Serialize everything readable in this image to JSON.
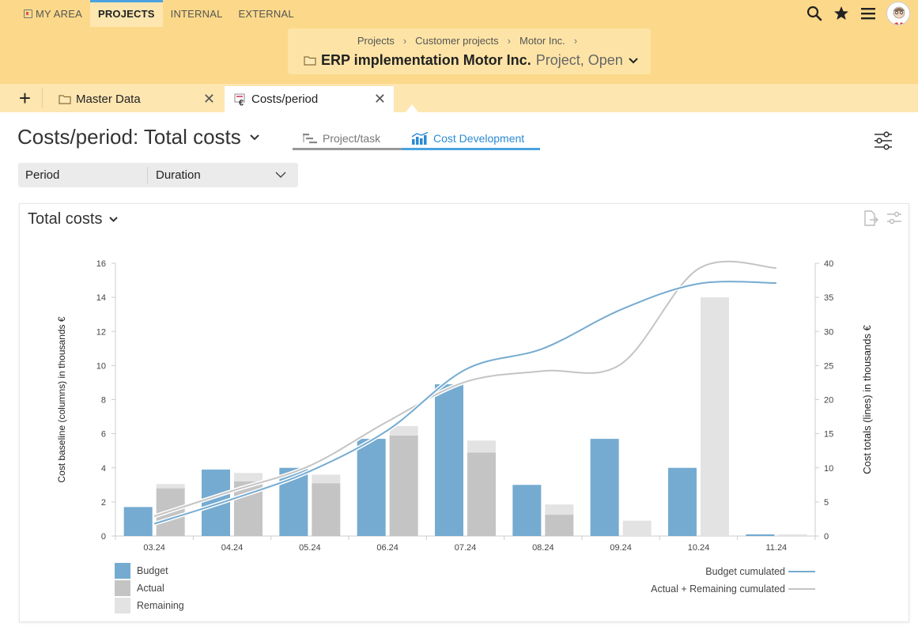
{
  "nav": {
    "items": [
      {
        "label": "MY AREA",
        "active": false
      },
      {
        "label": "PROJECTS",
        "active": true
      },
      {
        "label": "INTERNAL",
        "active": false
      },
      {
        "label": "EXTERNAL",
        "active": false
      }
    ],
    "icons": [
      "search-icon",
      "star-icon",
      "menu-icon",
      "avatar"
    ]
  },
  "breadcrumb": {
    "items": [
      "Projects",
      "Customer projects",
      "Motor Inc."
    ],
    "title": "ERP implementation Motor Inc.",
    "state": "Project, Open"
  },
  "tabs": {
    "add_label": "+",
    "items": [
      {
        "label": "Master Data",
        "icon": "folder-icon"
      },
      {
        "label": "Costs/period",
        "icon": "costs-icon"
      }
    ]
  },
  "page": {
    "title": "Costs/period: Total costs",
    "view_tabs": [
      {
        "label": "Project/task",
        "icon": "gantt-icon",
        "active": false
      },
      {
        "label": "Cost Development",
        "icon": "bar-line-chart-icon",
        "active": true
      }
    ],
    "filter": {
      "label": "Period",
      "value": "Duration"
    }
  },
  "card": {
    "title": "Total costs"
  },
  "colors": {
    "budget": "#75abd1",
    "actual": "#c4c4c4",
    "remaining": "#e3e3e3",
    "budget_line": "#75abd1",
    "actual_line": "#c4c4c4",
    "accent": "#4aa3df",
    "header": "#fcd98a"
  },
  "chart_data": {
    "type": "bar",
    "categories": [
      "03.24",
      "04.24",
      "05.24",
      "06.24",
      "07.24",
      "08.24",
      "09.24",
      "10.24",
      "11.24"
    ],
    "ylabel": "Cost baseline (columns) in thousands €",
    "ylabel_right": "Cost totals (lines) in thousands €",
    "ylim": [
      0,
      16
    ],
    "yticks": [
      0,
      2,
      4,
      6,
      8,
      10,
      12,
      14,
      16
    ],
    "ylim_right": [
      0,
      40
    ],
    "yticks_right": [
      0,
      5,
      10,
      15,
      20,
      25,
      30,
      35,
      40
    ],
    "series": [
      {
        "name": "Budget",
        "kind": "bar",
        "values": [
          1.7,
          3.9,
          4.0,
          5.7,
          8.9,
          3.0,
          5.7,
          4.0,
          0.1
        ]
      },
      {
        "name": "Actual",
        "kind": "bar-stack-base",
        "values": [
          2.8,
          3.2,
          3.1,
          5.9,
          4.9,
          1.25,
          0,
          0,
          0
        ]
      },
      {
        "name": "Remaining",
        "kind": "bar-stack-top",
        "values": [
          0.25,
          0.5,
          0.5,
          0.55,
          0.7,
          0.6,
          0.9,
          14.0,
          0.1
        ]
      },
      {
        "name": "Budget cumulated",
        "kind": "line",
        "axis": "right",
        "values": [
          1.8,
          5.4,
          9.5,
          15.5,
          24.4,
          27.5,
          33.2,
          37.0,
          37.1
        ]
      },
      {
        "name": "Actual + Remaining cumulated",
        "kind": "line",
        "axis": "right",
        "values": [
          2.9,
          6.6,
          10.3,
          16.8,
          22.6,
          24.2,
          25.2,
          39.2,
          39.3
        ]
      }
    ],
    "legend_left": [
      "Budget",
      "Actual",
      "Remaining"
    ],
    "legend_right": [
      "Budget cumulated",
      "Actual + Remaining cumulated"
    ]
  }
}
